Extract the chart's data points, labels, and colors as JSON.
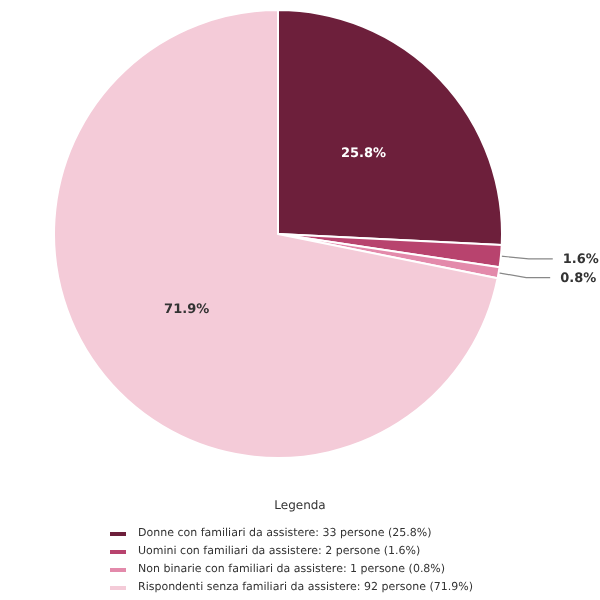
{
  "chart_data": {
    "type": "pie",
    "categories": [
      "Donne con familiari da assistere: 33 persone (25.8%)",
      "Uomini con familiari da assistere: 2 persone (1.6%)",
      "Non binarie con familiari da assistere: 1 persone (0.8%)",
      "Rispondenti senza familiari da assistere: 92 persone (71.9%)"
    ],
    "values": [
      25.8,
      1.6,
      0.8,
      71.9
    ],
    "colors": [
      "#6d1f3b",
      "#b8436e",
      "#e38aab",
      "#f4cbd8"
    ],
    "value_labels": [
      "25.8%",
      "1.6%",
      "0.8%",
      "71.9%"
    ],
    "legend": "bottom",
    "legend_title": "Legenda"
  }
}
